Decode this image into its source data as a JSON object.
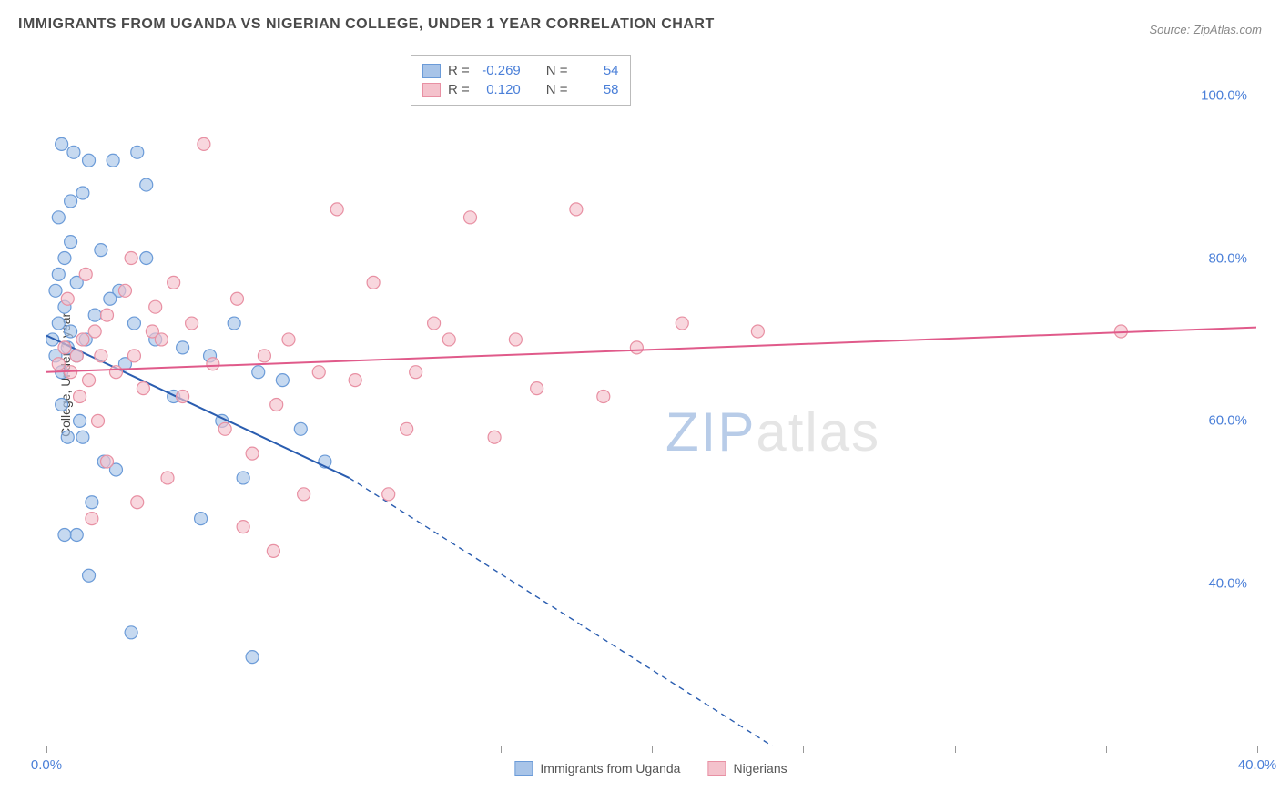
{
  "title": "IMMIGRANTS FROM UGANDA VS NIGERIAN COLLEGE, UNDER 1 YEAR CORRELATION CHART",
  "source": "Source: ZipAtlas.com",
  "ylabel": "College, Under 1 year",
  "watermark_text": "ZIPatlas",
  "chart": {
    "type": "scatter",
    "x_range": [
      0,
      40
    ],
    "y_range": [
      20,
      105
    ],
    "y_ticks": [
      40,
      60,
      80,
      100
    ],
    "y_tick_labels": [
      "40.0%",
      "60.0%",
      "80.0%",
      "100.0%"
    ],
    "x_ticks": [
      0,
      5,
      10,
      15,
      20,
      25,
      30,
      35,
      40
    ],
    "x_tick_labels": [
      "0.0%",
      "",
      "",
      "",
      "",
      "",
      "",
      "",
      "40.0%"
    ],
    "background_color": "#ffffff",
    "grid_color": "#cccccc",
    "axis_color": "#999999",
    "series": [
      {
        "name": "Immigrants from Uganda",
        "fill_color": "#a8c4e8",
        "stroke_color": "#6b9bd8",
        "marker_radius": 7,
        "marker_opacity": 0.65,
        "line_color": "#2a5db0",
        "line_width": 2,
        "R": "-0.269",
        "N": "54",
        "trend_solid": {
          "x1": 0,
          "y1": 70.5,
          "x2": 10,
          "y2": 53
        },
        "trend_dashed": {
          "x1": 10,
          "y1": 53,
          "x2": 24,
          "y2": 20
        },
        "points": [
          [
            0.2,
            70
          ],
          [
            0.3,
            68
          ],
          [
            0.4,
            72
          ],
          [
            0.5,
            66
          ],
          [
            0.6,
            74
          ],
          [
            0.7,
            69
          ],
          [
            0.8,
            71
          ],
          [
            0.3,
            76
          ],
          [
            0.4,
            78
          ],
          [
            0.6,
            80
          ],
          [
            0.8,
            82
          ],
          [
            1.0,
            77
          ],
          [
            1.2,
            88
          ],
          [
            1.4,
            92
          ],
          [
            2.2,
            92
          ],
          [
            3.0,
            93
          ],
          [
            3.3,
            89
          ],
          [
            1.1,
            60
          ],
          [
            0.5,
            62
          ],
          [
            0.7,
            58
          ],
          [
            0.4,
            85
          ],
          [
            0.8,
            87
          ],
          [
            1.0,
            68
          ],
          [
            1.3,
            70
          ],
          [
            1.6,
            73
          ],
          [
            1.9,
            55
          ],
          [
            2.3,
            54
          ],
          [
            2.6,
            67
          ],
          [
            2.4,
            76
          ],
          [
            2.9,
            72
          ],
          [
            3.3,
            80
          ],
          [
            3.6,
            70
          ],
          [
            4.2,
            63
          ],
          [
            4.5,
            69
          ],
          [
            5.1,
            48
          ],
          [
            5.4,
            68
          ],
          [
            5.8,
            60
          ],
          [
            6.2,
            72
          ],
          [
            6.5,
            53
          ],
          [
            7.0,
            66
          ],
          [
            7.8,
            65
          ],
          [
            8.4,
            59
          ],
          [
            9.2,
            55
          ],
          [
            1.0,
            46
          ],
          [
            1.2,
            58
          ],
          [
            1.5,
            50
          ],
          [
            1.4,
            41
          ],
          [
            0.6,
            46
          ],
          [
            2.8,
            34
          ],
          [
            6.8,
            31
          ],
          [
            0.5,
            94
          ],
          [
            0.9,
            93
          ],
          [
            1.8,
            81
          ],
          [
            2.1,
            75
          ]
        ]
      },
      {
        "name": "Nigerians",
        "fill_color": "#f4c2cc",
        "stroke_color": "#e890a3",
        "marker_radius": 7,
        "marker_opacity": 0.65,
        "line_color": "#e05a8a",
        "line_width": 2,
        "R": "0.120",
        "N": "58",
        "trend_solid": {
          "x1": 0,
          "y1": 66,
          "x2": 40,
          "y2": 71.5
        },
        "points": [
          [
            0.4,
            67
          ],
          [
            0.6,
            69
          ],
          [
            0.8,
            66
          ],
          [
            1.0,
            68
          ],
          [
            1.2,
            70
          ],
          [
            1.4,
            65
          ],
          [
            1.6,
            71
          ],
          [
            1.8,
            68
          ],
          [
            2.0,
            73
          ],
          [
            2.3,
            66
          ],
          [
            2.6,
            76
          ],
          [
            2.9,
            68
          ],
          [
            3.2,
            64
          ],
          [
            3.5,
            71
          ],
          [
            3.8,
            70
          ],
          [
            4.2,
            77
          ],
          [
            4.5,
            63
          ],
          [
            4.8,
            72
          ],
          [
            5.2,
            94
          ],
          [
            5.5,
            67
          ],
          [
            5.9,
            59
          ],
          [
            6.3,
            75
          ],
          [
            6.8,
            56
          ],
          [
            7.2,
            68
          ],
          [
            7.6,
            62
          ],
          [
            8.0,
            70
          ],
          [
            8.5,
            51
          ],
          [
            9.0,
            66
          ],
          [
            9.6,
            86
          ],
          [
            10.2,
            65
          ],
          [
            10.8,
            77
          ],
          [
            11.3,
            51
          ],
          [
            11.9,
            59
          ],
          [
            12.2,
            66
          ],
          [
            12.8,
            72
          ],
          [
            13.3,
            70
          ],
          [
            14.0,
            85
          ],
          [
            14.8,
            58
          ],
          [
            15.5,
            70
          ],
          [
            16.2,
            64
          ],
          [
            17.5,
            86
          ],
          [
            18.4,
            63
          ],
          [
            19.5,
            69
          ],
          [
            21.0,
            72
          ],
          [
            23.5,
            71
          ],
          [
            35.5,
            71
          ],
          [
            1.5,
            48
          ],
          [
            2.0,
            55
          ],
          [
            3.0,
            50
          ],
          [
            4.0,
            53
          ],
          [
            6.5,
            47
          ],
          [
            7.5,
            44
          ],
          [
            0.7,
            75
          ],
          [
            1.3,
            78
          ],
          [
            2.8,
            80
          ],
          [
            3.6,
            74
          ],
          [
            1.1,
            63
          ],
          [
            1.7,
            60
          ]
        ]
      }
    ],
    "legend_box": {
      "rows": [
        {
          "swatch_fill": "#a8c4e8",
          "swatch_stroke": "#6b9bd8",
          "r_label": "R =",
          "r_val": "-0.269",
          "n_label": "N =",
          "n_val": "54"
        },
        {
          "swatch_fill": "#f4c2cc",
          "swatch_stroke": "#e890a3",
          "r_label": "R =",
          "r_val": "0.120",
          "n_label": "N =",
          "n_val": "58"
        }
      ]
    },
    "bottom_legend": [
      {
        "swatch_fill": "#a8c4e8",
        "swatch_stroke": "#6b9bd8",
        "label": "Immigrants from Uganda"
      },
      {
        "swatch_fill": "#f4c2cc",
        "swatch_stroke": "#e890a3",
        "label": "Nigerians"
      }
    ]
  }
}
